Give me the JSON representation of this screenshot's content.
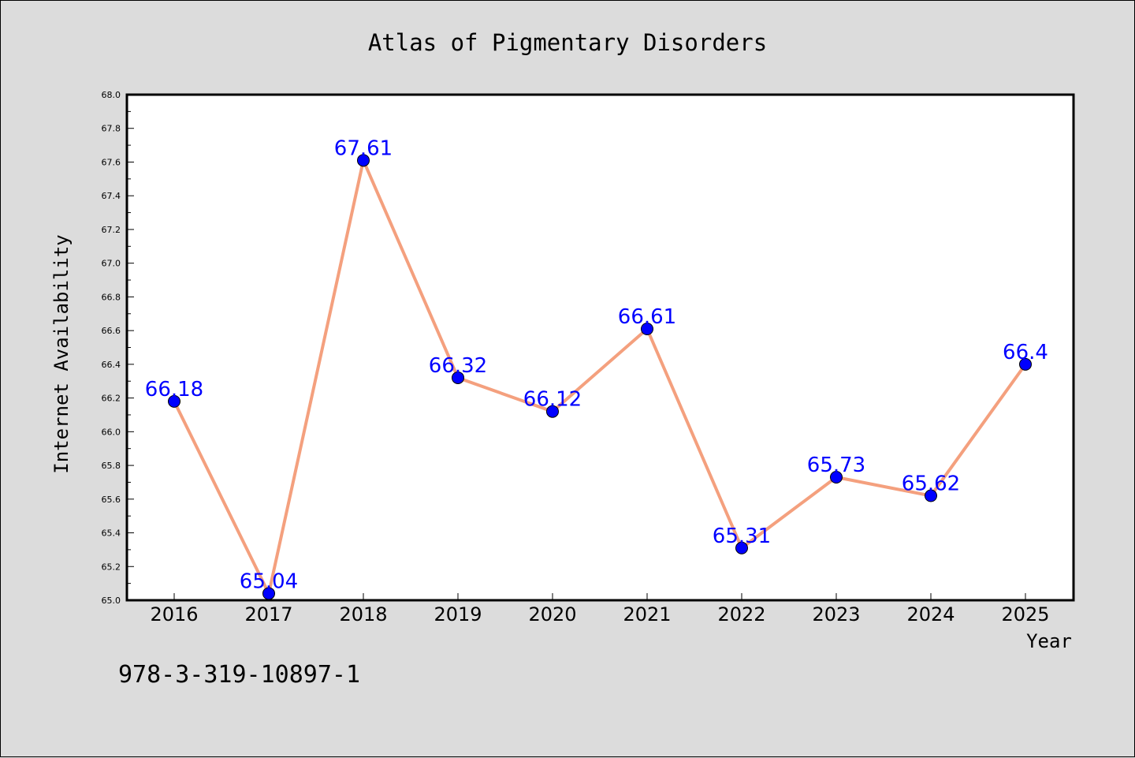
{
  "chart_data": {
    "type": "line",
    "title": "Atlas of Pigmentary Disorders",
    "xlabel": "Year",
    "ylabel": "Internet Availability",
    "categories": [
      "2016",
      "2017",
      "2018",
      "2019",
      "2020",
      "2021",
      "2022",
      "2023",
      "2024",
      "2025"
    ],
    "values": [
      66.18,
      65.04,
      67.61,
      66.32,
      66.12,
      66.61,
      65.31,
      65.73,
      65.62,
      66.4
    ],
    "data_labels": [
      "66.18",
      "65.04",
      "67.61",
      "66.32",
      "66.12",
      "66.61",
      "65.31",
      "65.73",
      "65.62",
      "66.4"
    ],
    "ylim": [
      65.0,
      68.0
    ],
    "yticks": [
      "65.0",
      "65.2",
      "65.4",
      "65.6",
      "65.8",
      "66.0",
      "66.2",
      "66.4",
      "66.6",
      "66.8",
      "67.0",
      "67.2",
      "67.4",
      "67.6",
      "67.8",
      "68.0"
    ],
    "grid": false,
    "legend": "none",
    "line_color": "#f4a07e",
    "marker_color": "#0000ff",
    "label_color": "#0000ff",
    "background_color": "#dcdcdc",
    "plot_background_color": "#ffffff"
  },
  "footnote": "978-3-319-10897-1"
}
